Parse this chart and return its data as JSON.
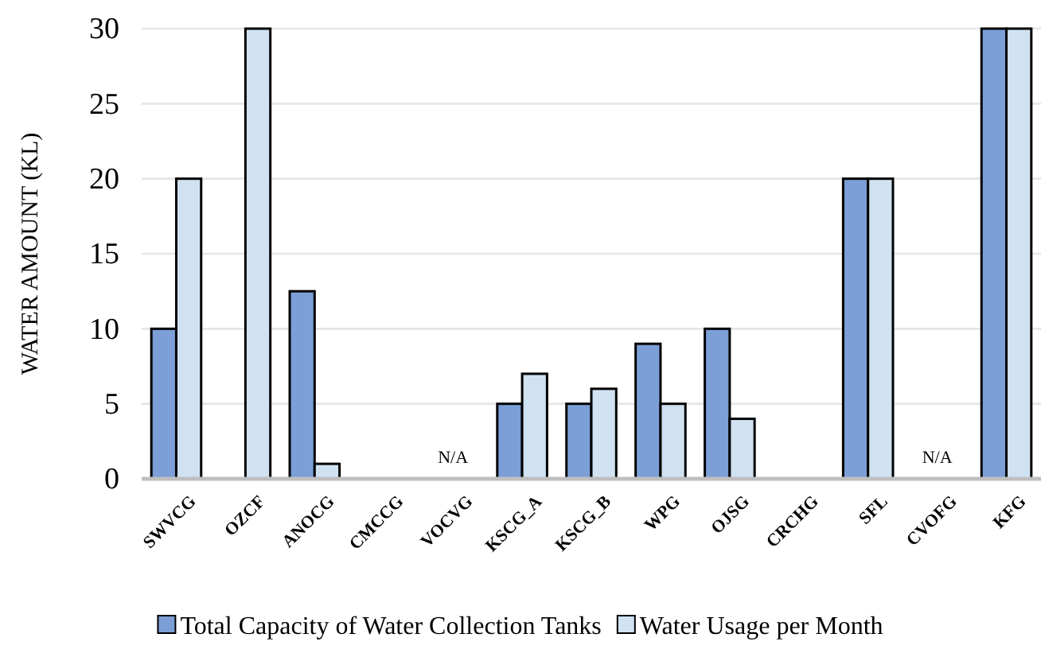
{
  "chart_data": {
    "type": "bar",
    "ylabel": "WATER AMOUNT (KL)",
    "categories": [
      "SWVCG",
      "OZCF",
      "ANOCG",
      "CMCCG",
      "VOCVG",
      "KSCG_A",
      "KSCG_B",
      "WPG",
      "OJSG",
      "CRCHG",
      "SFL",
      "CVOFG",
      "KFG"
    ],
    "series": [
      {
        "name": "Total Capacity of Water Collection Tanks",
        "color": "#7b9fd6",
        "values": [
          10,
          0,
          12.5,
          0,
          null,
          5,
          5,
          9,
          10,
          0,
          20,
          null,
          30
        ]
      },
      {
        "name": "Water Usage per Month",
        "color": "#d0e2f2",
        "values": [
          20,
          30,
          1,
          0,
          null,
          7,
          6,
          5,
          4,
          0,
          20,
          null,
          30
        ]
      }
    ],
    "ylim": [
      0,
      30
    ],
    "yticks": [
      0,
      5,
      10,
      15,
      20,
      25,
      30
    ],
    "grid": "y",
    "legend": "bottom",
    "annotations": [
      "N/A",
      "N/A"
    ]
  }
}
